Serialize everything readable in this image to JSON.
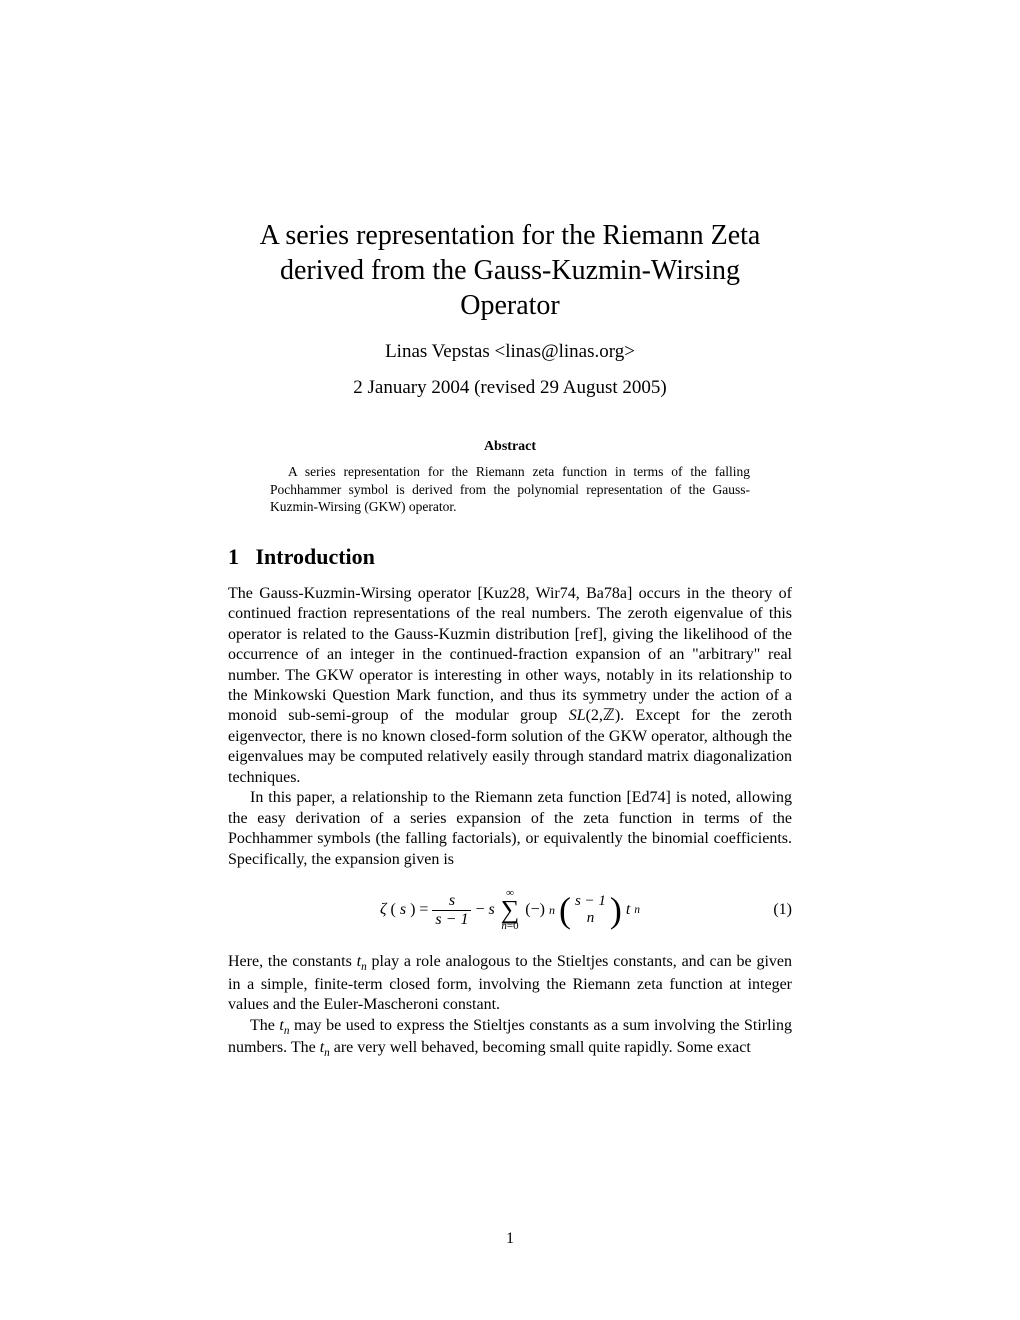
{
  "title": "A series representation for the Riemann Zeta derived from the Gauss-Kuzmin-Wirsing Operator",
  "author": "Linas Vepstas <linas@linas.org>",
  "date": "2 January 2004 (revised 29 August 2005)",
  "abstract": {
    "heading": "Abstract",
    "text": "A series representation for the Riemann zeta function in terms of the falling Pochhammer symbol is derived from the polynomial representation of the Gauss-Kuzmin-Wirsing (GKW) operator."
  },
  "section1": {
    "number": "1",
    "heading": "Introduction",
    "para1a": "The Gauss-Kuzmin-Wirsing operator [Kuz28, Wir74, Ba78a] occurs in the theory of continued fraction representations of the real numbers. The zeroth eigenvalue of this operator is related to the Gauss-Kuzmin distribution [ref], giving the likelihood of the occurrence of an integer in the continued-fraction expansion of an \"arbitrary\" real number. The GKW operator is interesting in other ways, notably in its relationship to the Minkowski Question Mark function, and thus its symmetry under the action of a monoid sub-semi-group of the modular group ",
    "para1b": "Except for the zeroth eigenvector, there is no known closed-form solution of the GKW operator, although the eigenvalues may be computed relatively easily through standard matrix diagonalization techniques.",
    "para2": "In this paper, a relationship to the Riemann zeta function [Ed74] is noted, allowing the easy derivation of a series expansion of the zeta function in terms of the Pochhammer symbols (the falling factorials), or equivalently the binomial coefficients. Specifically, the expansion given is",
    "para3a": "Here, the constants ",
    "para3b": " play a role analogous to the Stieltjes constants, and can be given in a simple, finite-term closed form, involving the Riemann zeta function at integer values and the Euler-Mascheroni constant.",
    "para4a": "The ",
    "para4b": " may be used to express the Stieltjes constants as a sum involving the Stirling numbers. The ",
    "para4c": " are very well behaved, becoming small quite rapidly. Some exact"
  },
  "equation1": {
    "number": "(1)",
    "lhs_func": "ζ",
    "lhs_arg": "s",
    "frac1_num": "s",
    "frac1_den": "s − 1",
    "minus": " − ",
    "coef": "s",
    "sum_top": "∞",
    "sum_bot_var": "n",
    "sum_bot_val": "=0",
    "sign_base": "(−)",
    "sign_exp": "n",
    "binom_top": "s − 1",
    "binom_bot": "n",
    "tail_var": "t",
    "tail_sub": "n"
  },
  "sl2z": {
    "sl": "SL",
    "args": "(2,ℤ). "
  },
  "tn": {
    "t": "t",
    "n": "n"
  },
  "page_number": "1"
}
